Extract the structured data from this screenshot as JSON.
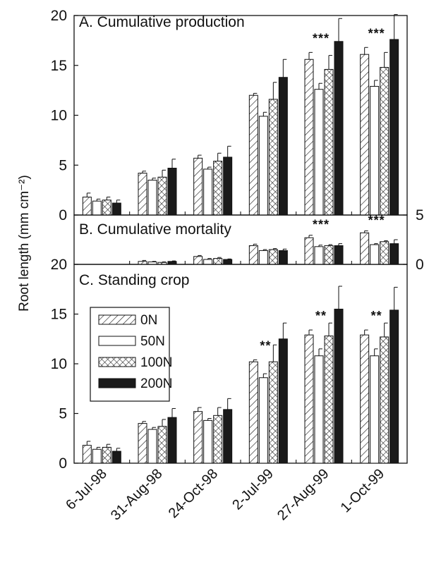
{
  "chart_data": {
    "type": "bar",
    "ylabel": "Root length (mm cm⁻²)",
    "categories": [
      "6-Jul-98",
      "31-Aug-98",
      "24-Oct-98",
      "2-Jul-99",
      "27-Aug-99",
      "1-Oct-99"
    ],
    "series_names": [
      "0N",
      "50N",
      "100N",
      "200N"
    ],
    "patterns": [
      "diagonal-hatch",
      "open",
      "cross-hatch",
      "solid"
    ],
    "panels": [
      {
        "id": "A",
        "title": "A. Cumulative production",
        "ylim": [
          0,
          20
        ],
        "yticks": [
          0,
          5,
          10,
          15,
          20
        ],
        "series": [
          {
            "name": "0N",
            "values": [
              1.8,
              4.2,
              5.7,
              12.0,
              15.6,
              16.1
            ],
            "errors": [
              0.4,
              0.2,
              0.3,
              0.2,
              0.7,
              0.7
            ]
          },
          {
            "name": "50N",
            "values": [
              1.4,
              3.5,
              4.6,
              9.9,
              12.6,
              12.9
            ],
            "errors": [
              0.2,
              0.2,
              0.2,
              0.4,
              0.6,
              0.6
            ]
          },
          {
            "name": "100N",
            "values": [
              1.5,
              3.8,
              5.4,
              11.6,
              14.6,
              14.8
            ],
            "errors": [
              0.3,
              0.7,
              0.8,
              1.7,
              1.4,
              1.5
            ]
          },
          {
            "name": "200N",
            "values": [
              1.2,
              4.7,
              5.8,
              13.8,
              17.4,
              17.6
            ],
            "errors": [
              0.3,
              0.9,
              1.1,
              1.8,
              2.3,
              2.5
            ]
          }
        ],
        "significance": [
          "",
          "",
          "",
          "",
          "***",
          "***"
        ]
      },
      {
        "id": "B",
        "title": "B. Cumulative mortality",
        "ylim": [
          0,
          5
        ],
        "yticks": [
          0,
          5
        ],
        "series": [
          {
            "name": "0N",
            "values": [
              0,
              0.3,
              0.8,
              1.9,
              2.7,
              3.2
            ],
            "errors": [
              0,
              0.1,
              0.1,
              0.15,
              0.25,
              0.2
            ]
          },
          {
            "name": "50N",
            "values": [
              0,
              0.25,
              0.5,
              1.4,
              1.8,
              2.0
            ],
            "errors": [
              0,
              0.05,
              0.1,
              0.1,
              0.15,
              0.1
            ]
          },
          {
            "name": "100N",
            "values": [
              0,
              0.2,
              0.6,
              1.5,
              1.9,
              2.3
            ],
            "errors": [
              0,
              0.05,
              0.1,
              0.1,
              0.1,
              0.1
            ]
          },
          {
            "name": "200N",
            "values": [
              0,
              0.3,
              0.5,
              1.4,
              1.9,
              2.1
            ],
            "errors": [
              0,
              0.05,
              0.05,
              0.15,
              0.2,
              0.4
            ]
          }
        ],
        "significance": [
          "",
          "",
          "",
          "",
          "***",
          "***"
        ]
      },
      {
        "id": "C",
        "title": "C. Standing crop",
        "ylim": [
          0,
          20
        ],
        "yticks": [
          0,
          5,
          10,
          15,
          20
        ],
        "series": [
          {
            "name": "0N",
            "values": [
              1.8,
              4.0,
              5.2,
              10.2,
              12.9,
              12.9
            ],
            "errors": [
              0.4,
              0.2,
              0.4,
              0.2,
              0.5,
              0.5
            ]
          },
          {
            "name": "50N",
            "values": [
              1.4,
              3.4,
              4.3,
              8.6,
              10.8,
              10.8
            ],
            "errors": [
              0.2,
              0.2,
              0.2,
              0.4,
              0.7,
              0.7
            ]
          },
          {
            "name": "100N",
            "values": [
              1.6,
              3.7,
              4.8,
              10.2,
              12.8,
              12.7
            ],
            "errors": [
              0.3,
              0.7,
              0.8,
              1.7,
              1.3,
              1.4
            ]
          },
          {
            "name": "200N",
            "values": [
              1.2,
              4.6,
              5.4,
              12.5,
              15.5,
              15.4
            ],
            "errors": [
              0.3,
              0.9,
              1.1,
              1.6,
              2.3,
              2.3
            ]
          }
        ],
        "significance": [
          "",
          "",
          "",
          "**",
          "**",
          "**"
        ]
      }
    ]
  }
}
